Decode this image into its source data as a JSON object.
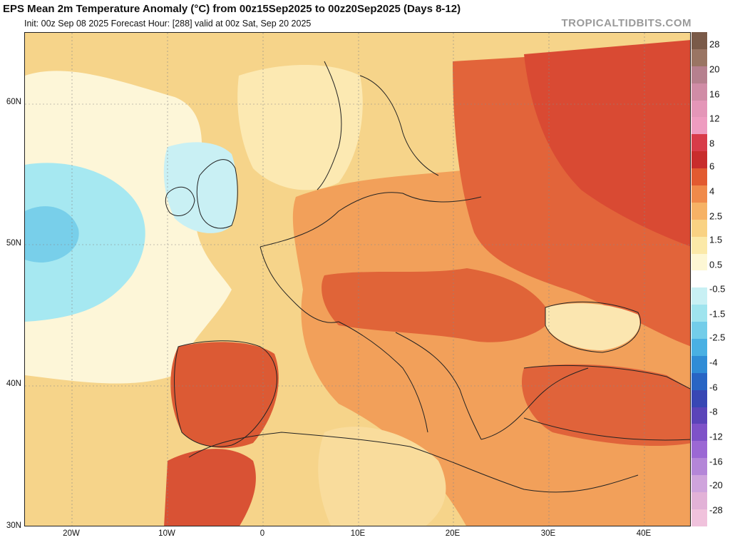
{
  "header": {
    "title": "EPS Mean 2m Temperature Anomaly (°C) from 00z15Sep2025 to 00z20Sep2025 (Days 8-12)",
    "subtitle": "Init: 00z Sep 08 2025   Forecast Hour: [288]   valid at 00z Sat, Sep 20 2025",
    "credit": "TROPICALTIDBITS.COM"
  },
  "axes": {
    "lat_labels": [
      "60N",
      "50N",
      "40N",
      "30N"
    ],
    "lon_labels": [
      "20W",
      "10W",
      "0",
      "10E",
      "20E",
      "30E",
      "40E"
    ]
  },
  "colorbar": {
    "labels": [
      "28",
      "20",
      "16",
      "12",
      "8",
      "6",
      "4",
      "2.5",
      "1.5",
      "0.5",
      "-0.5",
      "-1.5",
      "-2.5",
      "-4",
      "-6",
      "-8",
      "-12",
      "-16",
      "-20",
      "-28"
    ],
    "colors": [
      "#7a5a48",
      "#9a7563",
      "#b6808e",
      "#d08ca6",
      "#e496b8",
      "#ee9cc0",
      "#d83b49",
      "#c82c2c",
      "#e25a30",
      "#f08a4a",
      "#f6b265",
      "#f9d283",
      "#fbe9a8",
      "#fdf7d4",
      "#ffffff",
      "#c8f0f4",
      "#9fe4ee",
      "#73cde9",
      "#49b0e3",
      "#2f8cd6",
      "#2865c4",
      "#3847b4",
      "#5a44b9",
      "#7e52c8",
      "#9b68d4",
      "#b486d8",
      "#cfa4dc",
      "#e2b2d7",
      "#f0c2dc"
    ]
  }
}
